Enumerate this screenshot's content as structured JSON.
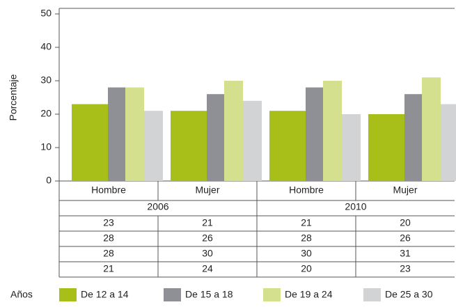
{
  "chart_data": {
    "type": "bar",
    "y_label": "Porcentaje",
    "categories": [
      "Hombre",
      "Mujer",
      "Hombre",
      "Mujer"
    ],
    "years": [
      "2006",
      "2010"
    ],
    "legend_title": "Años",
    "series": [
      {
        "name": "De 12 a 14",
        "color": "#a8bf1a",
        "values": [
          23,
          21,
          21,
          20
        ]
      },
      {
        "name": "De 15 a 18",
        "color": "#8f9095",
        "values": [
          28,
          26,
          28,
          26
        ]
      },
      {
        "name": "De 19 a 24",
        "color": "#d5e08f",
        "values": [
          28,
          30,
          30,
          31
        ]
      },
      {
        "name": "De 25 a 30",
        "color": "#d2d3d5",
        "values": [
          21,
          24,
          20,
          23
        ]
      }
    ],
    "ylim": [
      0,
      50
    ],
    "yticks": [
      0,
      10,
      20,
      30,
      40,
      50
    ],
    "grid": false
  }
}
